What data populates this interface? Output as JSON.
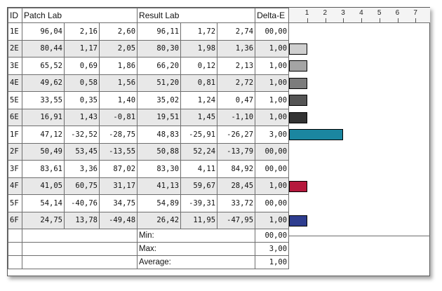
{
  "headers": {
    "id": "ID",
    "patch": "Patch Lab",
    "result": "Result Lab",
    "delta": "Delta-E"
  },
  "rows": [
    {
      "id": "1E",
      "p1": "96,04",
      "p2": "2,16",
      "p3": "2,60",
      "r1": "96,11",
      "r2": "1,72",
      "r3": "2,74",
      "de": "00,00"
    },
    {
      "id": "2E",
      "p1": "80,44",
      "p2": "1,17",
      "p3": "2,05",
      "r1": "80,30",
      "r2": "1,98",
      "r3": "1,36",
      "de": "1,00"
    },
    {
      "id": "3E",
      "p1": "65,52",
      "p2": "0,69",
      "p3": "1,86",
      "r1": "66,20",
      "r2": "0,12",
      "r3": "2,13",
      "de": "1,00"
    },
    {
      "id": "4E",
      "p1": "49,62",
      "p2": "0,58",
      "p3": "1,56",
      "r1": "51,20",
      "r2": "0,81",
      "r3": "2,72",
      "de": "1,00"
    },
    {
      "id": "5E",
      "p1": "33,55",
      "p2": "0,35",
      "p3": "1,40",
      "r1": "35,02",
      "r2": "1,24",
      "r3": "0,47",
      "de": "1,00"
    },
    {
      "id": "6E",
      "p1": "16,91",
      "p2": "1,43",
      "p3": "-0,81",
      "r1": "19,51",
      "r2": "1,45",
      "r3": "-1,10",
      "de": "1,00"
    },
    {
      "id": "1F",
      "p1": "47,12",
      "p2": "-32,52",
      "p3": "-28,75",
      "r1": "48,83",
      "r2": "-25,91",
      "r3": "-26,27",
      "de": "3,00"
    },
    {
      "id": "2F",
      "p1": "50,49",
      "p2": "53,45",
      "p3": "-13,55",
      "r1": "50,88",
      "r2": "52,24",
      "r3": "-13,79",
      "de": "00,00"
    },
    {
      "id": "3F",
      "p1": "83,61",
      "p2": "3,36",
      "p3": "87,02",
      "r1": "83,30",
      "r2": "4,11",
      "r3": "84,92",
      "de": "00,00"
    },
    {
      "id": "4F",
      "p1": "41,05",
      "p2": "60,75",
      "p3": "31,17",
      "r1": "41,13",
      "r2": "59,67",
      "r3": "28,45",
      "de": "1,00"
    },
    {
      "id": "5F",
      "p1": "54,14",
      "p2": "-40,76",
      "p3": "34,75",
      "r1": "54,89",
      "r2": "-39,31",
      "r3": "33,72",
      "de": "00,00"
    },
    {
      "id": "6F",
      "p1": "24,75",
      "p2": "13,78",
      "p3": "-49,48",
      "r1": "26,42",
      "r2": "11,95",
      "r3": "-47,95",
      "de": "1,00"
    }
  ],
  "summary": [
    {
      "label": "Min:",
      "value": "00,00"
    },
    {
      "label": "Max:",
      "value": "3,00"
    },
    {
      "label": "Average:",
      "value": "1,00"
    }
  ],
  "chart_data": {
    "type": "bar",
    "orientation": "horizontal",
    "ticks": [
      "1",
      "2",
      "3",
      "4",
      "5",
      "6",
      "7"
    ],
    "xlim": [
      0,
      7.8
    ],
    "categories": [
      "1E",
      "2E",
      "3E",
      "4E",
      "5E",
      "6E",
      "1F",
      "2F",
      "3F",
      "4F",
      "5F",
      "6F"
    ],
    "values": [
      0,
      1,
      1,
      1,
      1,
      1,
      3,
      0,
      0,
      1,
      0,
      1
    ],
    "colors": [
      "#ffffff",
      "#cfcfcf",
      "#a4a4a4",
      "#7c7c7c",
      "#555555",
      "#333333",
      "#1b86a0",
      "#ffffff",
      "#ffffff",
      "#b5183c",
      "#ffffff",
      "#2e3d8f"
    ]
  }
}
